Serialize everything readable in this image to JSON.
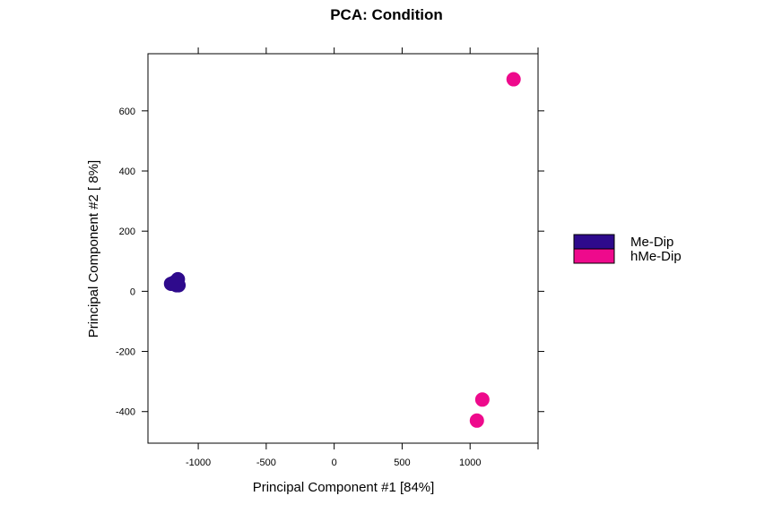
{
  "chart_data": {
    "type": "scatter",
    "title": "PCA: Condition",
    "xlabel": "Principal Component #1 [84%]",
    "ylabel": "Principal Component #2 [ 8%]",
    "xlim": [
      -1370,
      1500
    ],
    "ylim": [
      -505,
      790
    ],
    "xticks": [
      -1000,
      -500,
      0,
      500,
      1000
    ],
    "yticks": [
      -400,
      -200,
      0,
      200,
      400,
      600
    ],
    "grid": false,
    "legend_position": "right",
    "series": [
      {
        "name": "Me-Dip",
        "color": "#2E0A8C",
        "x": [
          -1180,
          -1150,
          -1160,
          -1200,
          -1175,
          -1145
        ],
        "y": [
          25,
          40,
          20,
          25,
          30,
          20
        ]
      },
      {
        "name": "hMe-Dip",
        "color": "#EE0A8C",
        "x": [
          1320,
          1090,
          1050
        ],
        "y": [
          705,
          -360,
          -430
        ]
      }
    ]
  }
}
